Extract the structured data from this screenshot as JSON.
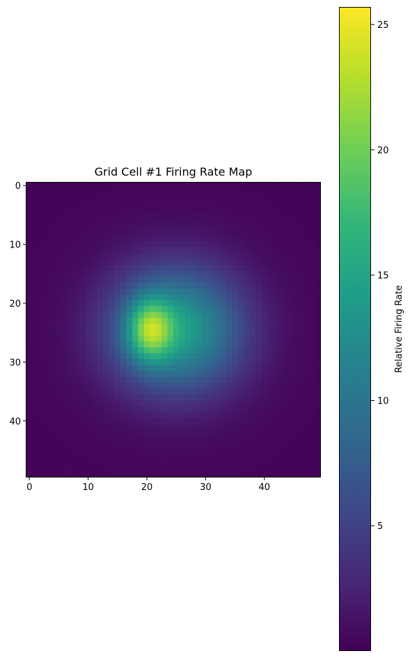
{
  "chart_data": {
    "type": "heatmap",
    "title": "Grid Cell #1 Firing Rate Map",
    "xlabel": "",
    "ylabel": "",
    "grid": false,
    "colormap": "viridis",
    "colormap_stops": [
      "#440154",
      "#482878",
      "#3e4989",
      "#31688e",
      "#26828e",
      "#1f9e89",
      "#35b779",
      "#6ece58",
      "#b5de2b",
      "#fde725"
    ],
    "size": [
      50,
      50
    ],
    "xlim": [
      -0.5,
      49.5
    ],
    "ylim": [
      49.5,
      -0.5
    ],
    "x_ticks": [
      0,
      10,
      20,
      30,
      40
    ],
    "x_tick_labels": [
      "0",
      "10",
      "20",
      "30",
      "40"
    ],
    "y_ticks": [
      0,
      10,
      20,
      30,
      40
    ],
    "y_tick_labels": [
      "0",
      "10",
      "20",
      "30",
      "40"
    ],
    "value_range": [
      0,
      25.7
    ],
    "peak": {
      "x": 20,
      "y": 24.5,
      "value": 25.7
    },
    "field_components": [
      {
        "x": 20.5,
        "y": 24.5,
        "sx": 2.6,
        "sy": 3.6,
        "amp": 11.5
      },
      {
        "x": 25,
        "y": 24.5,
        "sx": 8.0,
        "sy": 7.5,
        "amp": 14.2
      }
    ],
    "baseline": 0.3,
    "colorbar": {
      "label": "Relative Firing Rate",
      "ticks": [
        5,
        10,
        15,
        20,
        25
      ],
      "tick_labels": [
        "5",
        "10",
        "15",
        "20",
        "25"
      ],
      "range": [
        0,
        25.7
      ]
    }
  }
}
